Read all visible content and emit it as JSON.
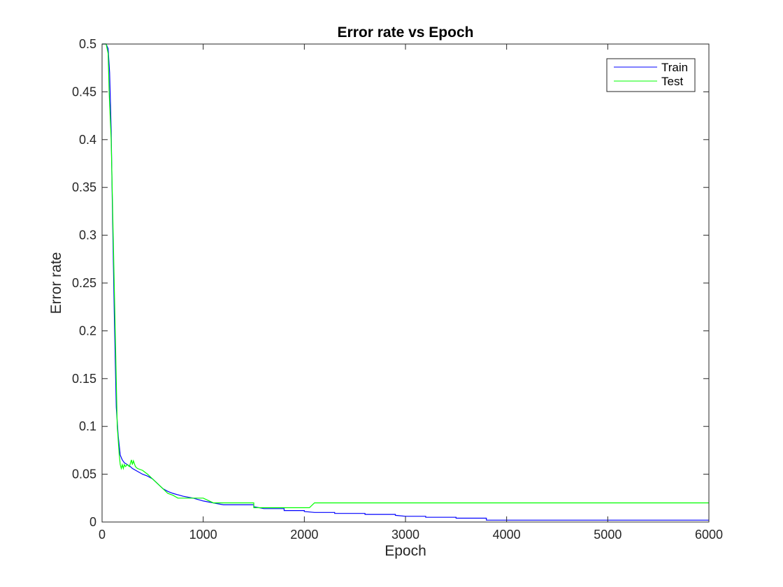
{
  "chart_data": {
    "type": "line",
    "title": "Error rate vs Epoch",
    "xlabel": "Epoch",
    "ylabel": "Error rate",
    "xlim": [
      0,
      6000
    ],
    "ylim": [
      0,
      0.5
    ],
    "xticks": [
      0,
      1000,
      2000,
      3000,
      4000,
      5000,
      6000
    ],
    "xtick_labels": [
      "0",
      "1000",
      "2000",
      "3000",
      "4000",
      "5000",
      "6000"
    ],
    "yticks": [
      0,
      0.05,
      0.1,
      0.15,
      0.2,
      0.25,
      0.3,
      0.35,
      0.4,
      0.45,
      0.5
    ],
    "ytick_labels": [
      "0",
      "0.05",
      "0.1",
      "0.15",
      "0.2",
      "0.25",
      "0.3",
      "0.35",
      "0.4",
      "0.45",
      "0.5"
    ],
    "grid": false,
    "legend_position": "top-right",
    "series": [
      {
        "name": "Train",
        "color": "#0000ff",
        "step": true,
        "x": [
          0,
          40,
          60,
          75,
          90,
          100,
          120,
          140,
          160,
          180,
          200,
          220,
          250,
          280,
          300,
          350,
          400,
          450,
          500,
          550,
          600,
          650,
          700,
          800,
          900,
          1000,
          1100,
          1200,
          1500,
          1600,
          1800,
          2000,
          2100,
          2300,
          2600,
          2900,
          3000,
          3200,
          3500,
          3800,
          4000,
          4500,
          5000,
          6000
        ],
        "y": [
          0.5,
          0.5,
          0.495,
          0.47,
          0.41,
          0.34,
          0.22,
          0.12,
          0.09,
          0.07,
          0.065,
          0.062,
          0.06,
          0.058,
          0.056,
          0.053,
          0.05,
          0.048,
          0.045,
          0.04,
          0.035,
          0.032,
          0.03,
          0.027,
          0.025,
          0.022,
          0.02,
          0.018,
          0.016,
          0.014,
          0.012,
          0.011,
          0.01,
          0.009,
          0.008,
          0.007,
          0.006,
          0.005,
          0.004,
          0.002,
          0.002,
          0.002,
          0.002,
          0.002
        ]
      },
      {
        "name": "Test",
        "color": "#00ff00",
        "step": true,
        "x": [
          0,
          40,
          60,
          70,
          90,
          110,
          130,
          150,
          170,
          180,
          190,
          200,
          210,
          220,
          230,
          250,
          270,
          290,
          300,
          310,
          330,
          350,
          400,
          450,
          500,
          550,
          600,
          650,
          700,
          750,
          800,
          1000,
          1100,
          1200,
          1300,
          1500,
          1600,
          1800,
          2000,
          2050,
          2100,
          3000,
          4000,
          5000,
          6000
        ],
        "y": [
          0.5,
          0.5,
          0.49,
          0.45,
          0.4,
          0.3,
          0.2,
          0.1,
          0.07,
          0.06,
          0.056,
          0.06,
          0.056,
          0.06,
          0.058,
          0.06,
          0.058,
          0.065,
          0.06,
          0.064,
          0.058,
          0.056,
          0.054,
          0.05,
          0.045,
          0.04,
          0.035,
          0.03,
          0.028,
          0.025,
          0.025,
          0.025,
          0.02,
          0.02,
          0.02,
          0.015,
          0.015,
          0.015,
          0.015,
          0.015,
          0.02,
          0.02,
          0.02,
          0.02,
          0.02
        ]
      }
    ]
  }
}
